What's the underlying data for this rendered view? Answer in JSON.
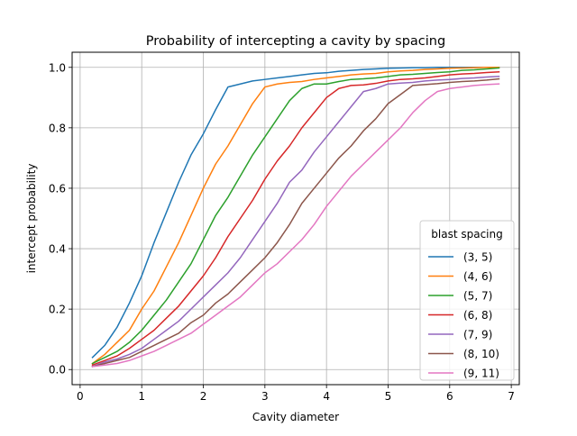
{
  "chart_data": {
    "type": "line",
    "title": "Probability of intercepting a cavity by spacing",
    "xlabel": "Cavity diameter",
    "ylabel": "intercept probability",
    "xlim": [
      -0.13,
      7.13
    ],
    "ylim": [
      -0.05,
      1.05
    ],
    "xticks": [
      0,
      1,
      2,
      3,
      4,
      5,
      6,
      7
    ],
    "xtick_labels": [
      "0",
      "1",
      "2",
      "3",
      "4",
      "5",
      "6",
      "7"
    ],
    "yticks": [
      0.0,
      0.2,
      0.4,
      0.6,
      0.8,
      1.0
    ],
    "ytick_labels": [
      "0.0",
      "0.2",
      "0.4",
      "0.6",
      "0.8",
      "1.0"
    ],
    "grid": true,
    "legend_title": "blast spacing",
    "legend_position": "lower-right",
    "x": [
      0.2,
      0.4,
      0.6,
      0.8,
      1.0,
      1.2,
      1.4,
      1.6,
      1.8,
      2.0,
      2.2,
      2.4,
      2.6,
      2.8,
      3.0,
      3.2,
      3.4,
      3.6,
      3.8,
      4.0,
      4.2,
      4.4,
      4.6,
      4.8,
      5.0,
      5.2,
      5.4,
      5.6,
      5.8,
      6.0,
      6.2,
      6.4,
      6.6,
      6.8
    ],
    "series": [
      {
        "name": "(3, 5)",
        "color": "#1f77b4",
        "values": [
          0.04,
          0.08,
          0.14,
          0.22,
          0.31,
          0.42,
          0.52,
          0.62,
          0.71,
          0.78,
          0.86,
          0.935,
          0.945,
          0.955,
          0.96,
          0.965,
          0.97,
          0.975,
          0.98,
          0.982,
          0.987,
          0.99,
          0.993,
          0.995,
          0.997,
          0.998,
          0.999,
          0.999,
          1.0,
          1.0,
          1.0,
          1.0,
          1.0,
          1.0
        ]
      },
      {
        "name": "(4, 6)",
        "color": "#ff7f0e",
        "values": [
          0.02,
          0.05,
          0.09,
          0.13,
          0.2,
          0.26,
          0.34,
          0.42,
          0.51,
          0.6,
          0.68,
          0.74,
          0.81,
          0.88,
          0.935,
          0.945,
          0.95,
          0.953,
          0.96,
          0.965,
          0.97,
          0.975,
          0.978,
          0.98,
          0.985,
          0.988,
          0.99,
          0.993,
          0.995,
          0.997,
          0.998,
          0.999,
          1.0,
          1.0
        ]
      },
      {
        "name": "(5, 7)",
        "color": "#2ca02c",
        "values": [
          0.02,
          0.04,
          0.06,
          0.09,
          0.13,
          0.18,
          0.23,
          0.29,
          0.35,
          0.43,
          0.51,
          0.57,
          0.64,
          0.71,
          0.77,
          0.83,
          0.89,
          0.93,
          0.945,
          0.945,
          0.953,
          0.96,
          0.962,
          0.965,
          0.97,
          0.975,
          0.977,
          0.98,
          0.983,
          0.985,
          0.99,
          0.992,
          0.995,
          0.998
        ]
      },
      {
        "name": "(6, 8)",
        "color": "#d62728",
        "values": [
          0.015,
          0.03,
          0.045,
          0.07,
          0.1,
          0.13,
          0.17,
          0.21,
          0.26,
          0.31,
          0.37,
          0.44,
          0.5,
          0.56,
          0.63,
          0.69,
          0.74,
          0.8,
          0.85,
          0.9,
          0.93,
          0.94,
          0.942,
          0.947,
          0.955,
          0.96,
          0.962,
          0.965,
          0.97,
          0.975,
          0.978,
          0.98,
          0.983,
          0.985
        ]
      },
      {
        "name": "(7, 9)",
        "color": "#9467bd",
        "values": [
          0.01,
          0.025,
          0.035,
          0.05,
          0.07,
          0.1,
          0.13,
          0.16,
          0.2,
          0.24,
          0.28,
          0.32,
          0.37,
          0.43,
          0.49,
          0.55,
          0.62,
          0.66,
          0.72,
          0.77,
          0.82,
          0.87,
          0.92,
          0.93,
          0.945,
          0.948,
          0.95,
          0.955,
          0.958,
          0.96,
          0.963,
          0.965,
          0.968,
          0.97
        ]
      },
      {
        "name": "(8, 10)",
        "color": "#8c564b",
        "values": [
          0.01,
          0.02,
          0.03,
          0.04,
          0.06,
          0.08,
          0.1,
          0.12,
          0.155,
          0.18,
          0.22,
          0.25,
          0.29,
          0.33,
          0.37,
          0.42,
          0.48,
          0.55,
          0.6,
          0.65,
          0.7,
          0.74,
          0.79,
          0.83,
          0.88,
          0.91,
          0.94,
          0.943,
          0.946,
          0.95,
          0.953,
          0.955,
          0.958,
          0.962
        ]
      },
      {
        "name": "(9, 11)",
        "color": "#e377c2",
        "values": [
          0.01,
          0.015,
          0.02,
          0.03,
          0.045,
          0.06,
          0.08,
          0.1,
          0.12,
          0.15,
          0.18,
          0.21,
          0.24,
          0.28,
          0.32,
          0.35,
          0.39,
          0.43,
          0.48,
          0.54,
          0.59,
          0.64,
          0.68,
          0.72,
          0.76,
          0.8,
          0.85,
          0.89,
          0.92,
          0.93,
          0.935,
          0.94,
          0.943,
          0.945
        ]
      }
    ]
  }
}
